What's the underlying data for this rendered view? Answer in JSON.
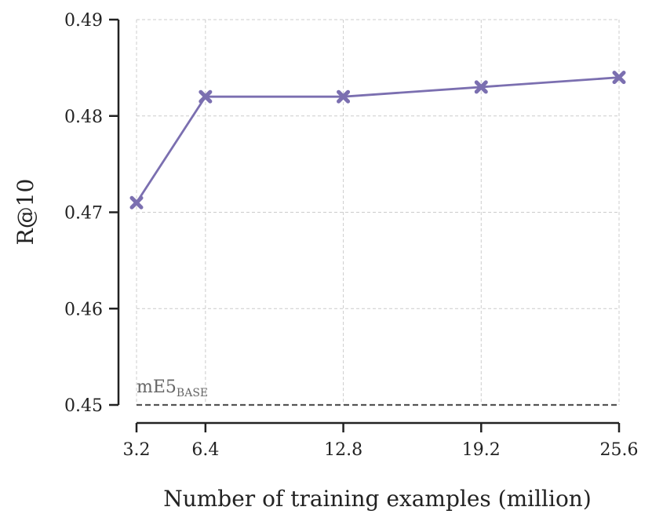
{
  "chart_data": {
    "type": "line",
    "title": "",
    "xlabel": "Number of training examples (million)",
    "ylabel": "R@10",
    "x": [
      3.2,
      6.4,
      12.8,
      19.2,
      25.6
    ],
    "x_tick_labels": [
      "3.2",
      "6.4",
      "12.8",
      "19.2",
      "25.6"
    ],
    "y_tick_labels": [
      "0.45",
      "0.46",
      "0.47",
      "0.48",
      "0.49"
    ],
    "y_ticks": [
      0.45,
      0.46,
      0.47,
      0.48,
      0.49
    ],
    "xlim": [
      3.2,
      25.6
    ],
    "ylim": [
      0.45,
      0.49
    ],
    "grid": true,
    "series": [
      {
        "values": [
          0.471,
          0.482,
          0.482,
          0.483,
          0.484
        ],
        "color": "#7b6fb0",
        "marker": "x"
      }
    ],
    "baseline": {
      "label": "mE5",
      "label_subscript": "BASE",
      "value": 0.45,
      "color": "#555555",
      "style": "dashed"
    }
  }
}
